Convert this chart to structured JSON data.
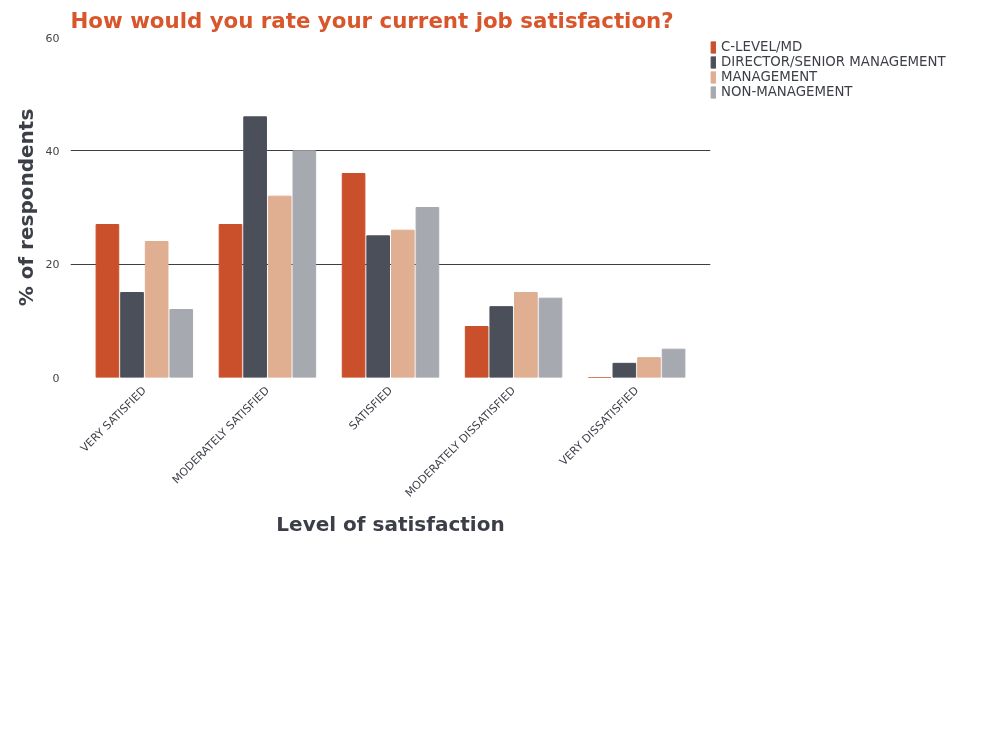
{
  "chart_data": {
    "type": "bar",
    "title": "How would you rate your current job satisfaction?",
    "xlabel": "Level of satisfaction",
    "ylabel": "% of respondents",
    "categories": [
      "VERY SATISFIED",
      "MODERATELY SATISFIED",
      "SATISFIED",
      "MODERATELY DISSATISFIED",
      "VERY DISSATISFIED"
    ],
    "series": [
      {
        "name": "C-LEVEL/MD",
        "color": "#c9502a",
        "values": [
          27,
          27,
          36,
          9,
          0
        ]
      },
      {
        "name": "DIRECTOR/SENIOR MANAGEMENT",
        "color": "#4a4f5a",
        "values": [
          15,
          46,
          25,
          12.5,
          2.5
        ]
      },
      {
        "name": "MANAGEMENT",
        "color": "#e0ae90",
        "values": [
          24,
          32,
          26,
          15,
          3.5
        ]
      },
      {
        "name": "NON-MANAGEMENT",
        "color": "#a7a9b0",
        "values": [
          12,
          40,
          30,
          14,
          5
        ]
      }
    ],
    "ylim": [
      0,
      60
    ],
    "yticks": [
      0,
      20,
      40,
      60
    ],
    "grid": "y",
    "legend": "top right"
  }
}
